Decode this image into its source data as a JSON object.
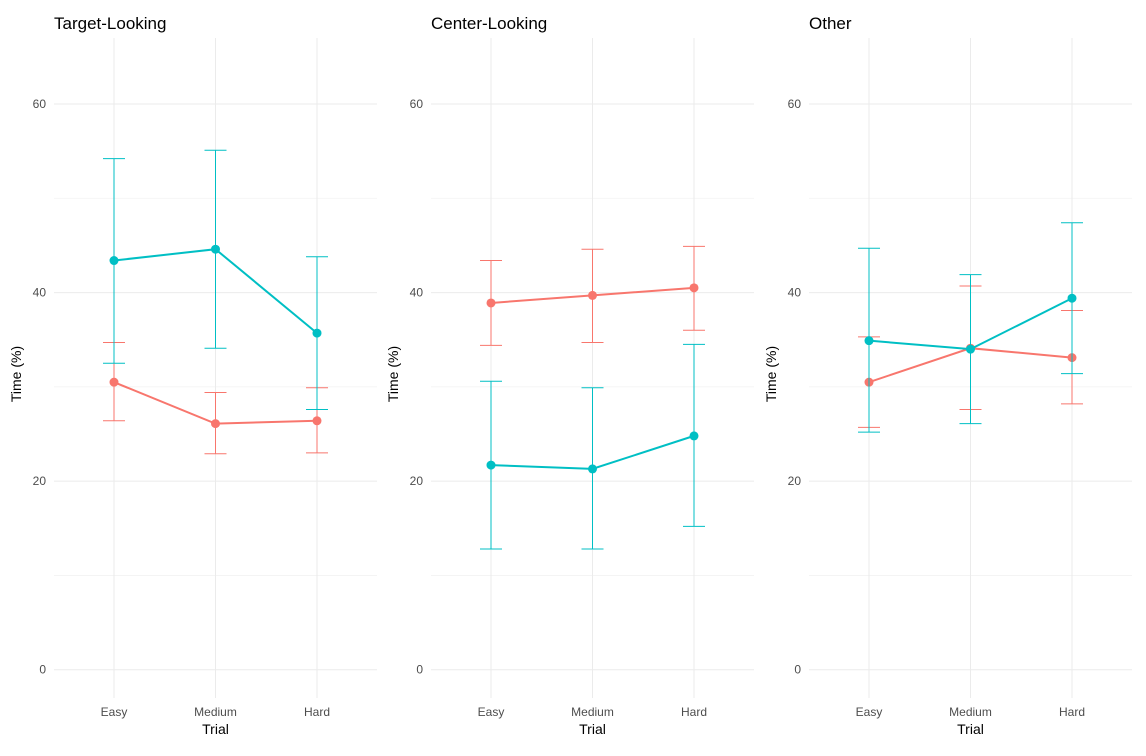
{
  "chart_data": {
    "type": "line",
    "colors": {
      "series_a": "#F8766D",
      "series_b": "#00BFC4",
      "grid": "#EBEBEB"
    },
    "categories": [
      "Easy",
      "Medium",
      "Hard"
    ],
    "xlabel": "Trial",
    "ylabel": "Time (%)",
    "ylim": [
      -3,
      67
    ],
    "yticks": [
      "0",
      "20",
      "40",
      "60"
    ],
    "grid": true,
    "legend": "none",
    "panels": [
      {
        "title": "Target-Looking",
        "series": [
          {
            "color": "#F8766D",
            "values": [
              30.5,
              26.1,
              26.4
            ],
            "lower": [
              26.4,
              22.9,
              23.0
            ],
            "upper": [
              34.7,
              29.4,
              29.9
            ]
          },
          {
            "color": "#00BFC4",
            "values": [
              43.4,
              44.6,
              35.7
            ],
            "lower": [
              32.5,
              34.1,
              27.6
            ],
            "upper": [
              54.2,
              55.1,
              43.8
            ]
          }
        ]
      },
      {
        "title": "Center-Looking",
        "series": [
          {
            "color": "#F8766D",
            "values": [
              38.9,
              39.7,
              40.5
            ],
            "lower": [
              34.4,
              34.7,
              36.0
            ],
            "upper": [
              43.4,
              44.6,
              44.9
            ]
          },
          {
            "color": "#00BFC4",
            "values": [
              21.7,
              21.3,
              24.8
            ],
            "lower": [
              12.8,
              12.8,
              15.2
            ],
            "upper": [
              30.6,
              29.9,
              34.5
            ]
          }
        ]
      },
      {
        "title": "Other",
        "series": [
          {
            "color": "#F8766D",
            "values": [
              30.5,
              34.1,
              33.1
            ],
            "lower": [
              25.7,
              27.6,
              28.2
            ],
            "upper": [
              35.3,
              40.7,
              38.1
            ]
          },
          {
            "color": "#00BFC4",
            "values": [
              34.9,
              34.0,
              39.4
            ],
            "lower": [
              25.2,
              26.1,
              31.4
            ],
            "upper": [
              44.7,
              41.9,
              47.4
            ]
          }
        ]
      }
    ]
  }
}
